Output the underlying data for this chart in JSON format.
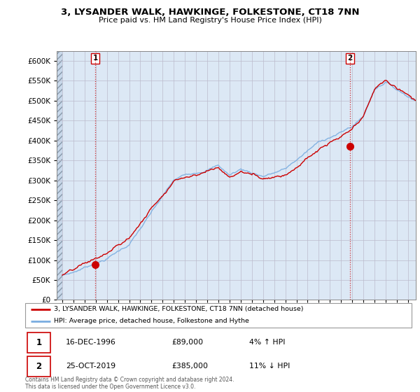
{
  "title1": "3, LYSANDER WALK, HAWKINGE, FOLKESTONE, CT18 7NN",
  "title2": "Price paid vs. HM Land Registry's House Price Index (HPI)",
  "ylabel_ticks": [
    0,
    50000,
    100000,
    150000,
    200000,
    250000,
    300000,
    350000,
    400000,
    450000,
    500000,
    550000,
    600000
  ],
  "ylim": [
    0,
    625000
  ],
  "xlim_start": 1993.5,
  "xlim_end": 2025.7,
  "sale1_year": 1996.96,
  "sale1_price": 89000,
  "sale2_year": 2019.81,
  "sale2_price": 385000,
  "annotation1_date": "16-DEC-1996",
  "annotation1_price": "£89,000",
  "annotation1_hpi": "4% ↑ HPI",
  "annotation2_date": "25-OCT-2019",
  "annotation2_price": "£385,000",
  "annotation2_hpi": "11% ↓ HPI",
  "legend_label1": "3, LYSANDER WALK, HAWKINGE, FOLKESTONE, CT18 7NN (detached house)",
  "legend_label2": "HPI: Average price, detached house, Folkestone and Hythe",
  "copyright_text": "Contains HM Land Registry data © Crown copyright and database right 2024.\nThis data is licensed under the Open Government Licence v3.0.",
  "line_color_price": "#cc0000",
  "line_color_hpi": "#7aade0",
  "marker_color": "#cc0000",
  "vline_color": "#cc0000",
  "grid_color": "#bbbbcc",
  "plot_bg": "#dce8f5",
  "fig_bg": "#ffffff"
}
